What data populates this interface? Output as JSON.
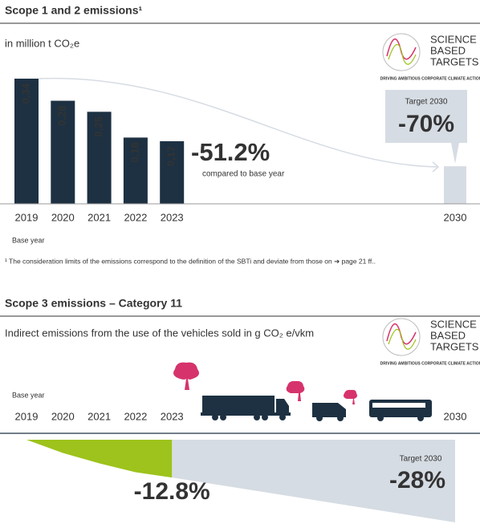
{
  "logo": {
    "lines": [
      "SCIENCE",
      "BASED",
      "TARGETS"
    ],
    "tagline": "DRIVING AMBITIOUS CORPORATE CLIMATE ACTION"
  },
  "chart_data": [
    {
      "type": "bar",
      "title": "Scope 1 and 2 emissions¹",
      "subtitle": "in million t CO₂e",
      "categories": [
        "2019",
        "2020",
        "2021",
        "2022",
        "2023",
        "2030"
      ],
      "values": [
        0.34,
        0.28,
        0.25,
        0.18,
        0.17,
        0.102
      ],
      "value_labels": [
        "0,34",
        "0,28",
        "0,25",
        "0,18",
        "0,17",
        null
      ],
      "colors": [
        "#1d3142",
        "#1d3142",
        "#1d3142",
        "#1d3142",
        "#1d3142",
        "#d6dce3"
      ],
      "ylim": [
        0,
        0.4
      ],
      "annotations": [
        "-51.2%",
        "compared to base year",
        "Target 2030",
        "-70%",
        "Base year"
      ],
      "footnote": "¹ The consideration limits of the emissions correspond to the definition of the SBTi and deviate from those on ➔ page 21 ff.."
    },
    {
      "type": "area",
      "title": "Scope 3 emissions – Category 11",
      "subtitle": "Indirect emissions from the use of the vehicles sold in g CO₂ e/vkm",
      "categories": [
        "2019",
        "2020",
        "2021",
        "2022",
        "2023",
        "2030"
      ],
      "values": [
        0,
        -4.5,
        -8,
        -11,
        -12.8,
        -28
      ],
      "value_labels": [
        null,
        null,
        null,
        null,
        "-12.8%",
        "-28%"
      ],
      "colors": [
        "#9dc31c",
        "#d6dce3"
      ],
      "ylim": [
        -28,
        0
      ],
      "annotations": [
        "Base year",
        "Target 2030"
      ]
    }
  ]
}
